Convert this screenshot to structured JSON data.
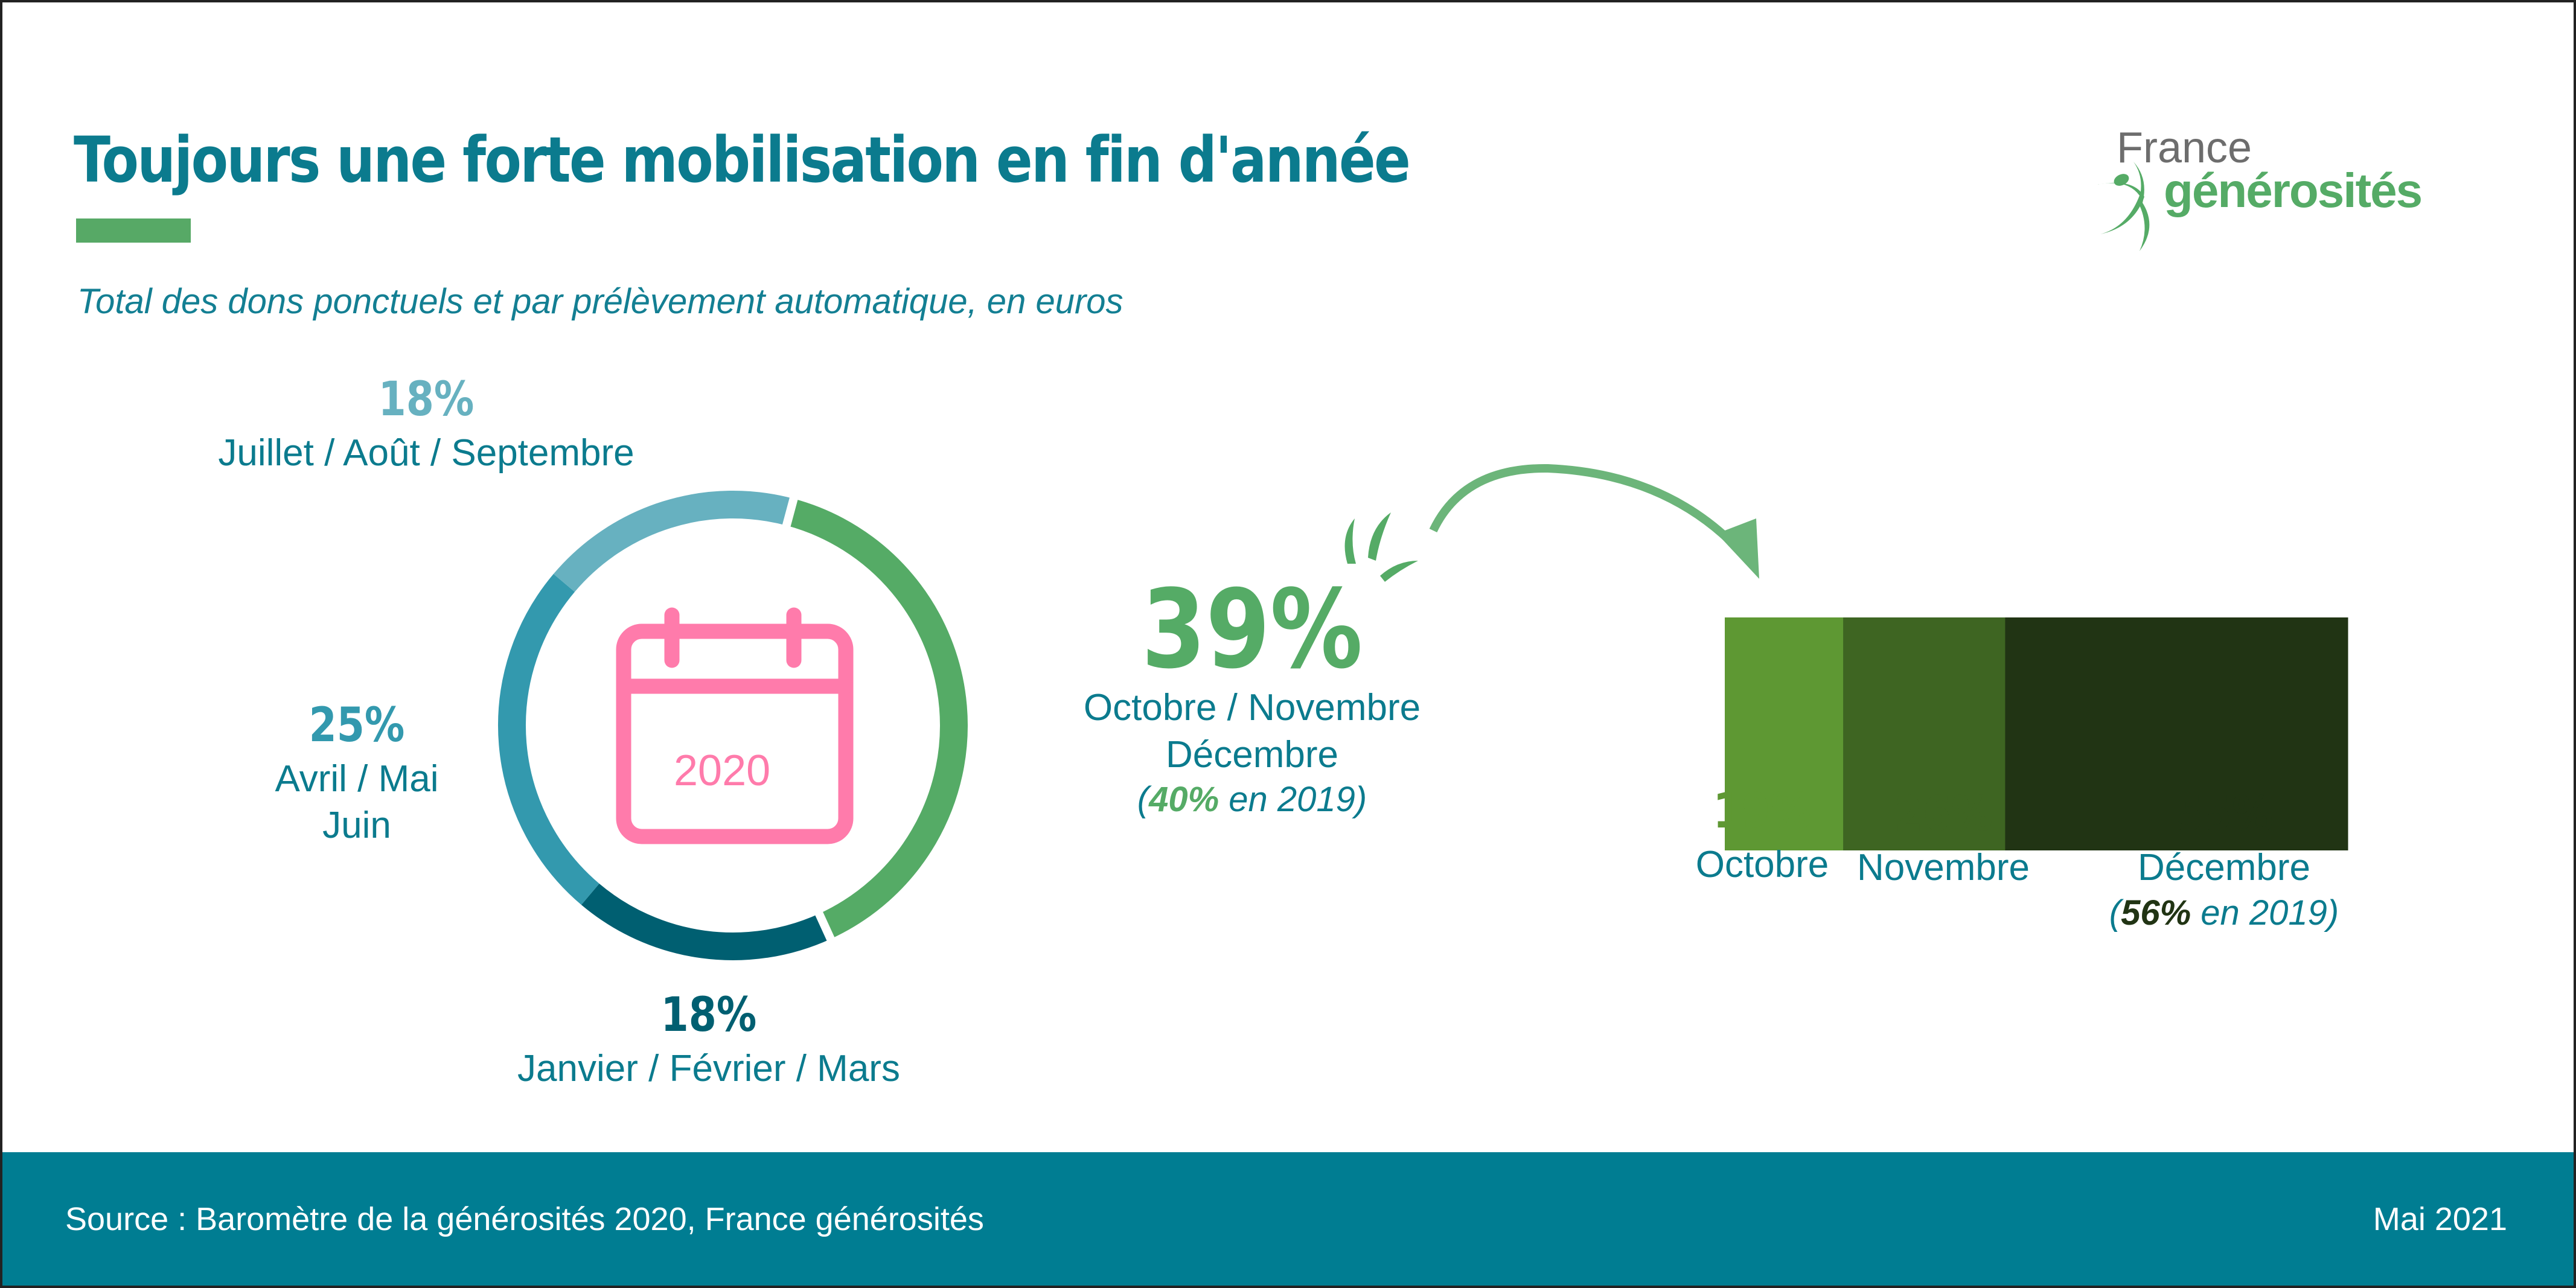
{
  "header": {
    "title": "Toujours une forte mobilisation en fin d'année",
    "subtitle": "Total des dons ponctuels et par prélèvement automatique, en euros"
  },
  "logo": {
    "line1": "France",
    "line2": "générosités",
    "icon": "leaping-figure-icon"
  },
  "colors": {
    "accent": "#57a966",
    "teal": "#0b7b8e",
    "footer": "#007d92",
    "calendar": "#ff7bab"
  },
  "chart_data": [
    {
      "type": "pie",
      "variant": "donut",
      "center_label": "2020",
      "categories": [
        "Octobre / Novembre Décembre",
        "Janvier / Février / Mars",
        "Avril / Mai Juin",
        "Juillet / Août / Septembre"
      ],
      "values": [
        39,
        18,
        25,
        18
      ],
      "colors": [
        "#55ab66",
        "#005f71",
        "#3399ae",
        "#67b1c0"
      ],
      "labels": [
        {
          "pct": "39%",
          "line1": "Octobre / Novembre",
          "line2": "Décembre",
          "note_pct": "40%",
          "note_rest": " en 2019)",
          "note_open": "("
        },
        {
          "pct": "18%",
          "line1": "Janvier / Février / Mars"
        },
        {
          "pct": "25%",
          "line1": "Avril / Mai",
          "line2": "Juin"
        },
        {
          "pct": "18%",
          "line1": "Juillet / Août / Septembre"
        }
      ]
    },
    {
      "type": "bar",
      "variant": "stacked-horizontal",
      "categories": [
        "Octobre",
        "Novembre",
        "Décembre"
      ],
      "values": [
        19,
        26,
        55
      ],
      "colors": [
        "#5e9833",
        "#3e6522",
        "#213414"
      ],
      "labels": [
        {
          "pct": "19%",
          "name": "Octobre"
        },
        {
          "pct": "26%",
          "name": "Novembre"
        },
        {
          "pct": "55%",
          "name": "Décembre",
          "note_open": "(",
          "note_pct": "56%",
          "note_rest": " en 2019)"
        }
      ]
    }
  ],
  "footer": {
    "source": "Source : Baromètre de la générosités 2020, France générosités",
    "date": "Mai 2021"
  }
}
